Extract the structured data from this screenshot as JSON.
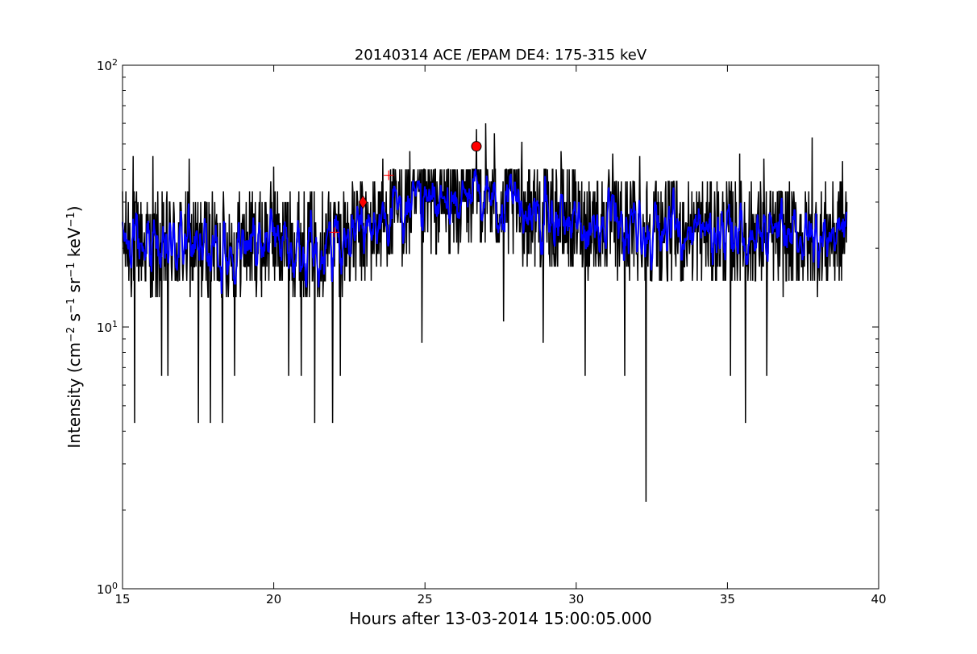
{
  "chart_data": {
    "type": "line",
    "title": "20140314 ACE /EPAM DE4: 175-315 keV",
    "xlabel": "Hours after 13-03-2014 15:00:05.000",
    "ylabel": {
      "prefix": "Intensity (cm",
      "parts": [
        {
          "text": "Intensity (cm",
          "sup": false
        },
        {
          "text": "−2",
          "sup": true
        },
        {
          "text": " s",
          "sup": false
        },
        {
          "text": "−1",
          "sup": true
        },
        {
          "text": " sr",
          "sup": false
        },
        {
          "text": "−1",
          "sup": true
        },
        {
          "text": " keV",
          "sup": false
        },
        {
          "text": "−1",
          "sup": true
        },
        {
          "text": ")",
          "sup": false
        }
      ]
    },
    "xlim": [
      15,
      40
    ],
    "ylim": [
      1,
      100
    ],
    "yscale": "log",
    "grid": false,
    "xticks": [
      15,
      20,
      25,
      30,
      35,
      40
    ],
    "xtick_labels": [
      "15",
      "20",
      "25",
      "30",
      "35",
      "40"
    ],
    "yticks": [
      {
        "value": 1,
        "base": "10",
        "exp": "0"
      },
      {
        "value": 10,
        "base": "10",
        "exp": "1"
      },
      {
        "value": 100,
        "base": "10",
        "exp": "2"
      }
    ],
    "raw_series": {
      "color": "#000000",
      "x_start": 15.0,
      "x_end": 38.95,
      "typical_range": [
        13,
        40
      ],
      "anchors": [
        {
          "x": 15.0,
          "y": 22
        },
        {
          "x": 16.0,
          "y": 20
        },
        {
          "x": 17.0,
          "y": 21
        },
        {
          "x": 18.0,
          "y": 20
        },
        {
          "x": 19.0,
          "y": 21
        },
        {
          "x": 20.0,
          "y": 22
        },
        {
          "x": 21.0,
          "y": 21
        },
        {
          "x": 22.0,
          "y": 22
        },
        {
          "x": 23.0,
          "y": 23
        },
        {
          "x": 24.0,
          "y": 27
        },
        {
          "x": 25.0,
          "y": 29
        },
        {
          "x": 26.0,
          "y": 30
        },
        {
          "x": 26.7,
          "y": 33
        },
        {
          "x": 27.5,
          "y": 30
        },
        {
          "x": 28.5,
          "y": 28
        },
        {
          "x": 29.5,
          "y": 26
        },
        {
          "x": 30.5,
          "y": 25
        },
        {
          "x": 31.5,
          "y": 24
        },
        {
          "x": 32.5,
          "y": 24
        },
        {
          "x": 33.5,
          "y": 23
        },
        {
          "x": 34.5,
          "y": 23
        },
        {
          "x": 35.5,
          "y": 23
        },
        {
          "x": 36.5,
          "y": 22
        },
        {
          "x": 37.5,
          "y": 22
        },
        {
          "x": 38.95,
          "y": 23
        }
      ],
      "spikes_down": [
        {
          "x": 15.4,
          "y": 4.3
        },
        {
          "x": 16.3,
          "y": 6.5
        },
        {
          "x": 16.5,
          "y": 6.5
        },
        {
          "x": 17.5,
          "y": 4.3
        },
        {
          "x": 17.9,
          "y": 4.3
        },
        {
          "x": 18.3,
          "y": 4.3
        },
        {
          "x": 18.7,
          "y": 6.5
        },
        {
          "x": 20.5,
          "y": 6.5
        },
        {
          "x": 20.9,
          "y": 6.5
        },
        {
          "x": 21.35,
          "y": 4.3
        },
        {
          "x": 21.95,
          "y": 4.3
        },
        {
          "x": 22.2,
          "y": 6.5
        },
        {
          "x": 24.9,
          "y": 8.7
        },
        {
          "x": 27.6,
          "y": 10.5
        },
        {
          "x": 28.9,
          "y": 8.7
        },
        {
          "x": 30.3,
          "y": 6.5
        },
        {
          "x": 31.6,
          "y": 6.5
        },
        {
          "x": 32.3,
          "y": 2.15
        },
        {
          "x": 35.1,
          "y": 6.5
        },
        {
          "x": 35.6,
          "y": 4.3
        },
        {
          "x": 36.3,
          "y": 6.5
        }
      ],
      "spikes_up": [
        {
          "x": 15.35,
          "y": 45
        },
        {
          "x": 16.0,
          "y": 45
        },
        {
          "x": 17.2,
          "y": 44
        },
        {
          "x": 20.0,
          "y": 41
        },
        {
          "x": 23.6,
          "y": 44
        },
        {
          "x": 24.5,
          "y": 47
        },
        {
          "x": 26.7,
          "y": 57
        },
        {
          "x": 27.0,
          "y": 60
        },
        {
          "x": 27.3,
          "y": 55
        },
        {
          "x": 28.2,
          "y": 51
        },
        {
          "x": 29.5,
          "y": 47
        },
        {
          "x": 31.2,
          "y": 46
        },
        {
          "x": 32.1,
          "y": 45
        },
        {
          "x": 35.4,
          "y": 46
        },
        {
          "x": 36.2,
          "y": 44
        },
        {
          "x": 37.8,
          "y": 53
        },
        {
          "x": 38.8,
          "y": 43
        }
      ]
    },
    "smoothed_series": {
      "color": "#0000ff",
      "typical_range": [
        16,
        34
      ]
    },
    "markers": [
      {
        "x": 22.95,
        "y": 30,
        "shape": "diamond",
        "color": "#ff0000"
      },
      {
        "x": 26.7,
        "y": 49,
        "shape": "circle",
        "color": "#ff0000"
      },
      {
        "x": 23.8,
        "y": 38,
        "shape": "plus",
        "color": "#ff0000"
      },
      {
        "x": 22.0,
        "y": 23,
        "shape": "plus",
        "color": "#ff0000"
      }
    ]
  }
}
